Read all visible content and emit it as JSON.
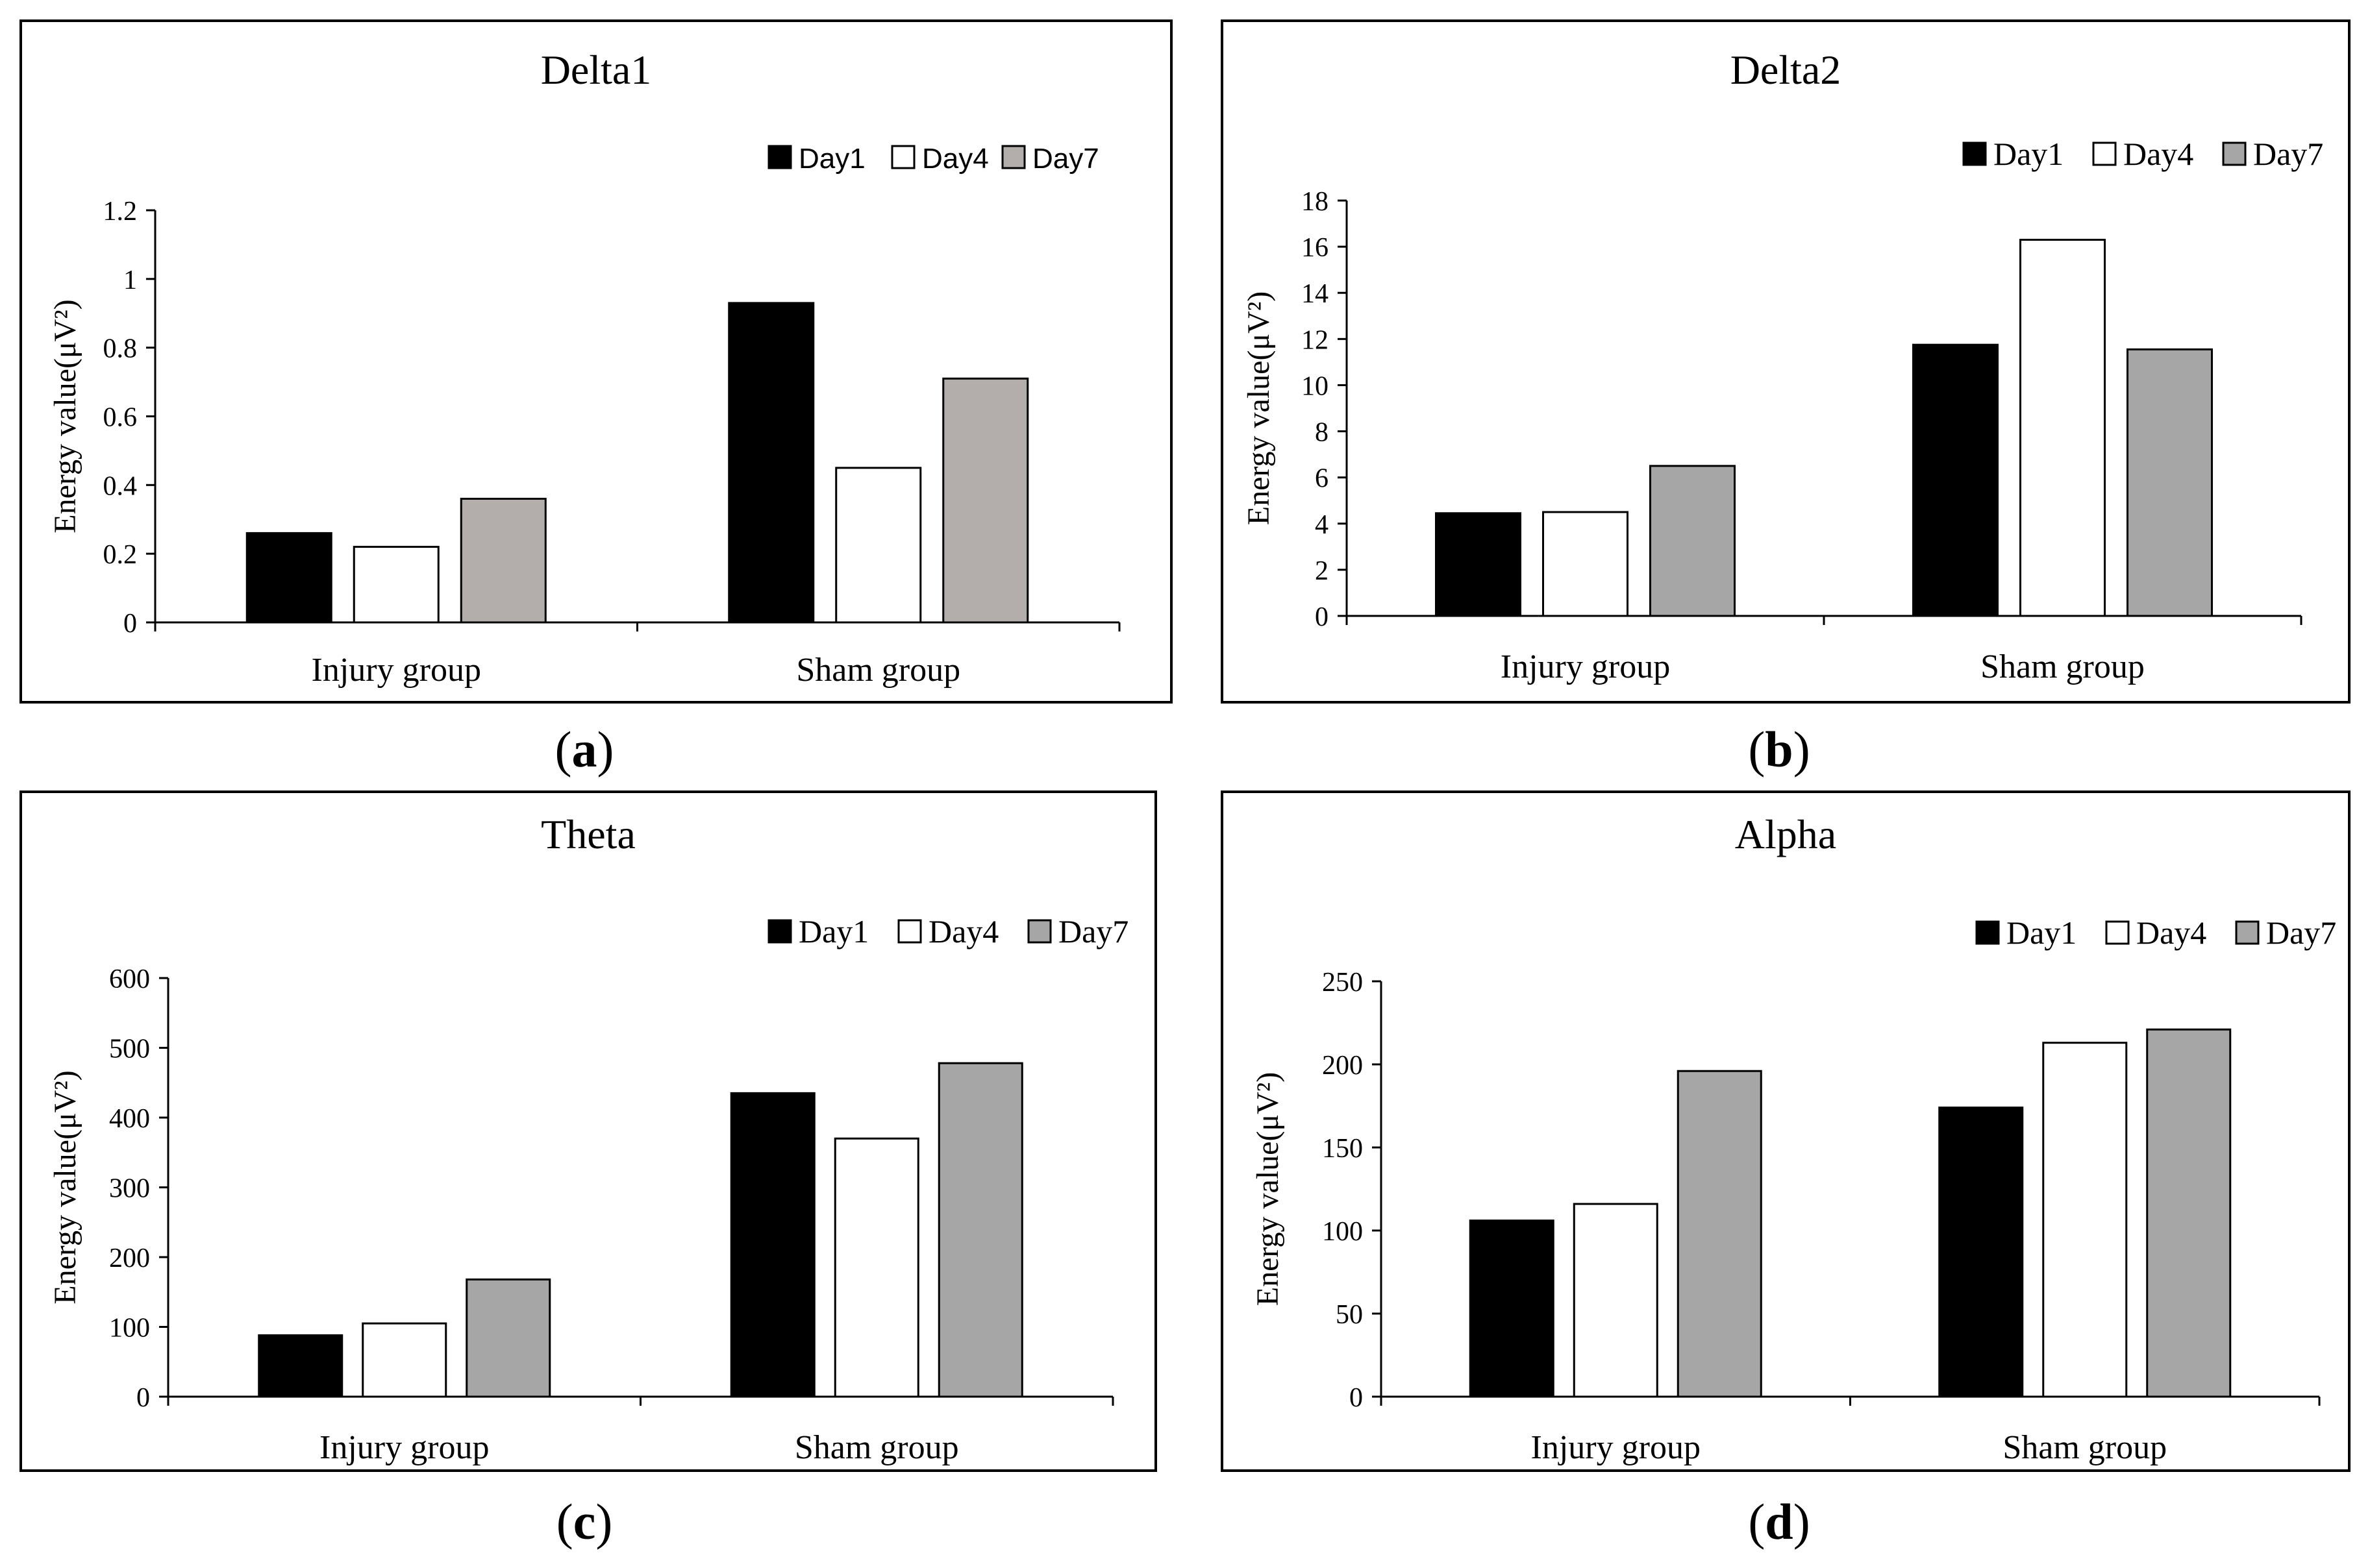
{
  "chart_data": [
    {
      "type": "bar",
      "title": "Delta1",
      "caption_letter": "a",
      "categories": [
        "Injury group",
        "Sham group"
      ],
      "series": [
        {
          "name": "Day1",
          "color": "#000000",
          "values": [
            0.26,
            0.93
          ]
        },
        {
          "name": "Day4",
          "color": "#ffffff",
          "values": [
            0.22,
            0.45
          ]
        },
        {
          "name": "Day7",
          "color": "#b3aeab",
          "values": [
            0.36,
            0.71
          ]
        }
      ],
      "ylabel": "Energy value(μV²)",
      "ylim": [
        0,
        1.2
      ],
      "yticks": [
        "0",
        "0.2",
        "0.4",
        "0.6",
        "0.8",
        "1",
        "1.2"
      ],
      "legend_position": "top-right"
    },
    {
      "type": "bar",
      "title": "Delta2",
      "caption_letter": "b",
      "categories": [
        "Injury group",
        "Sham group"
      ],
      "series": [
        {
          "name": "Day1",
          "color": "#000000",
          "values": [
            4.45,
            11.75
          ]
        },
        {
          "name": "Day4",
          "color": "#ffffff",
          "values": [
            4.5,
            16.3
          ]
        },
        {
          "name": "Day7",
          "color": "#a6a6a6",
          "values": [
            6.5,
            11.55
          ]
        }
      ],
      "ylabel": "Energy value(μV²)",
      "ylim": [
        0,
        18
      ],
      "yticks": [
        "0",
        "2",
        "4",
        "6",
        "8",
        "10",
        "12",
        "14",
        "16",
        "18"
      ],
      "legend_position": "top-right"
    },
    {
      "type": "bar",
      "title": "Theta",
      "caption_letter": "c",
      "categories": [
        "Injury group",
        "Sham group"
      ],
      "series": [
        {
          "name": "Day1",
          "color": "#000000",
          "values": [
            88,
            435
          ]
        },
        {
          "name": "Day4",
          "color": "#ffffff",
          "values": [
            105,
            370
          ]
        },
        {
          "name": "Day7",
          "color": "#a6a6a6",
          "values": [
            168,
            478
          ]
        }
      ],
      "ylabel": "Energy value(μV²)",
      "ylim": [
        0,
        600
      ],
      "yticks": [
        "0",
        "100",
        "200",
        "300",
        "400",
        "500",
        "600"
      ],
      "legend_position": "top-right"
    },
    {
      "type": "bar",
      "title": "Alpha",
      "caption_letter": "d",
      "categories": [
        "Injury group",
        "Sham group"
      ],
      "series": [
        {
          "name": "Day1",
          "color": "#000000",
          "values": [
            106,
            174
          ]
        },
        {
          "name": "Day4",
          "color": "#ffffff",
          "values": [
            116,
            213
          ]
        },
        {
          "name": "Day7",
          "color": "#a6a6a6",
          "values": [
            196,
            221
          ]
        }
      ],
      "ylabel": "Energy value(μV²)",
      "ylim": [
        0,
        250
      ],
      "yticks": [
        "0",
        "50",
        "100",
        "150",
        "200",
        "250"
      ],
      "legend_position": "top-right"
    }
  ]
}
